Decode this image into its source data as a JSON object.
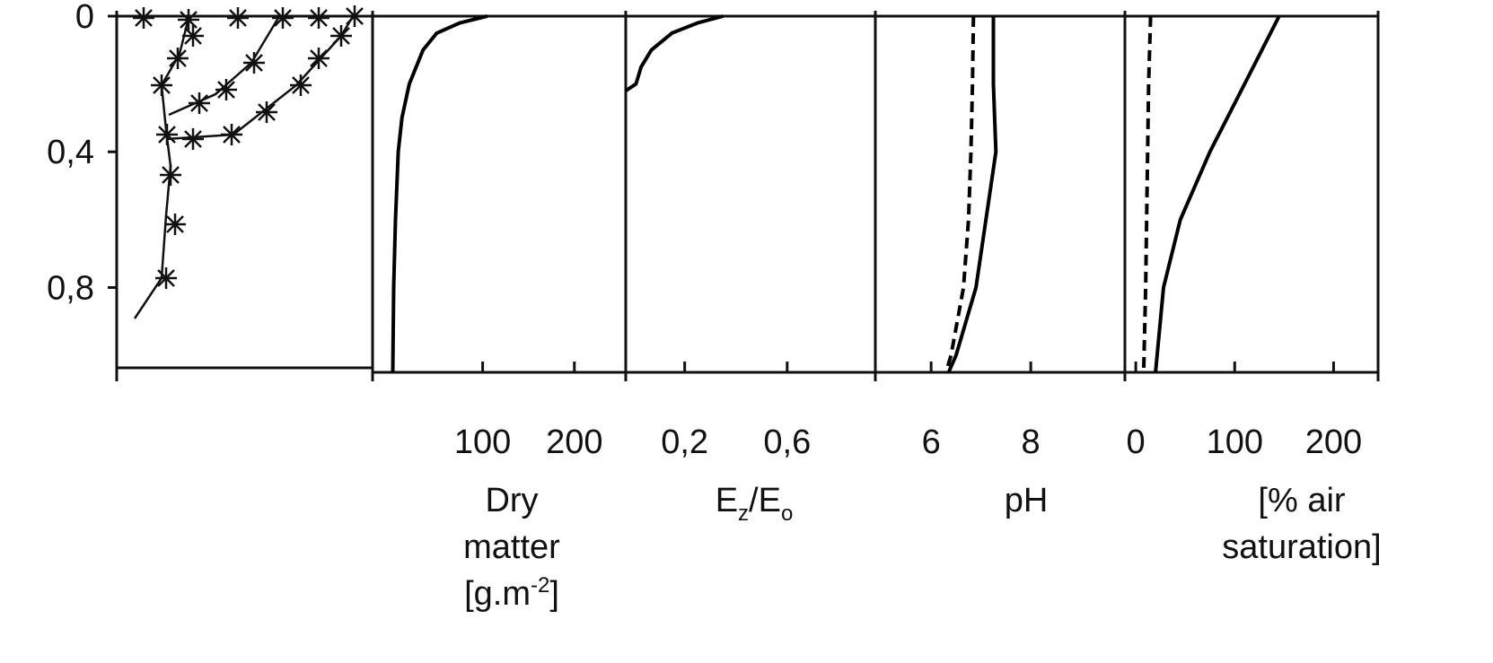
{
  "chart_data": [
    {
      "type": "line",
      "xlabel": [
        "Dry",
        "matter",
        "[g.m",
        "-2",
        "]"
      ],
      "y": [
        0,
        0.02,
        0.05,
        0.1,
        0.2,
        0.3,
        0.4,
        0.6,
        0.8,
        1.05
      ],
      "series": [
        {
          "color": "#000000",
          "dashed": false,
          "values": [
            105,
            75,
            50,
            35,
            20,
            12,
            8,
            5,
            3,
            2
          ]
        }
      ],
      "xlim": [
        -20,
        256
      ],
      "xticks": [
        100,
        200
      ],
      "ylim": [
        0,
        1.05
      ],
      "yticks": [
        {
          "value": 0,
          "label": "0"
        },
        {
          "value": 0.4,
          "label": "0,4"
        },
        {
          "value": 0.8,
          "label": "0,8"
        }
      ]
    },
    {
      "type": "line",
      "xlabel": [
        "E",
        "z",
        "/E",
        "o"
      ],
      "y": [
        0,
        0.02,
        0.05,
        0.1,
        0.15,
        0.2,
        0.22
      ],
      "series": [
        {
          "color": "#000000",
          "dashed": false,
          "values": [
            0.35,
            0.25,
            0.15,
            0.07,
            0.03,
            0.01,
            -0.03
          ]
        }
      ],
      "xlim": [
        -0.03,
        0.944
      ],
      "xticks": [
        {
          "value": 0.2,
          "label": "0,2"
        },
        {
          "value": 0.6,
          "label": "0,6"
        }
      ],
      "ylim": [
        0,
        1.05
      ]
    },
    {
      "type": "line",
      "xlabel": [
        "pH"
      ],
      "y": [
        0,
        0.2,
        0.4,
        0.6,
        0.8,
        1.0,
        1.05
      ],
      "series": [
        {
          "color": "#000000",
          "dashed": false,
          "values": [
            7.25,
            7.25,
            7.3,
            7.1,
            6.9,
            6.5,
            6.35
          ]
        },
        {
          "color": "#000000",
          "dashed": true,
          "values": [
            6.85,
            6.83,
            6.8,
            6.75,
            6.65,
            6.4,
            6.3
          ]
        }
      ],
      "xlim": [
        4.88,
        9.89
      ],
      "xticks": [
        6,
        8
      ],
      "ylim": [
        0,
        1.05
      ]
    },
    {
      "type": "line",
      "xlabel": [
        "[% air",
        "saturation]"
      ],
      "y": [
        0,
        0.2,
        0.4,
        0.6,
        0.8,
        1.05
      ],
      "series": [
        {
          "color": "#000000",
          "dashed": false,
          "values": [
            145,
            110,
            75,
            45,
            28,
            20
          ]
        },
        {
          "color": "#000000",
          "dashed": true,
          "values": [
            15,
            13,
            12,
            11,
            10,
            8
          ]
        }
      ],
      "xlim": [
        -11,
        245
      ],
      "xticks": [
        0,
        100,
        200
      ],
      "ylim": [
        0,
        1.05
      ]
    }
  ]
}
